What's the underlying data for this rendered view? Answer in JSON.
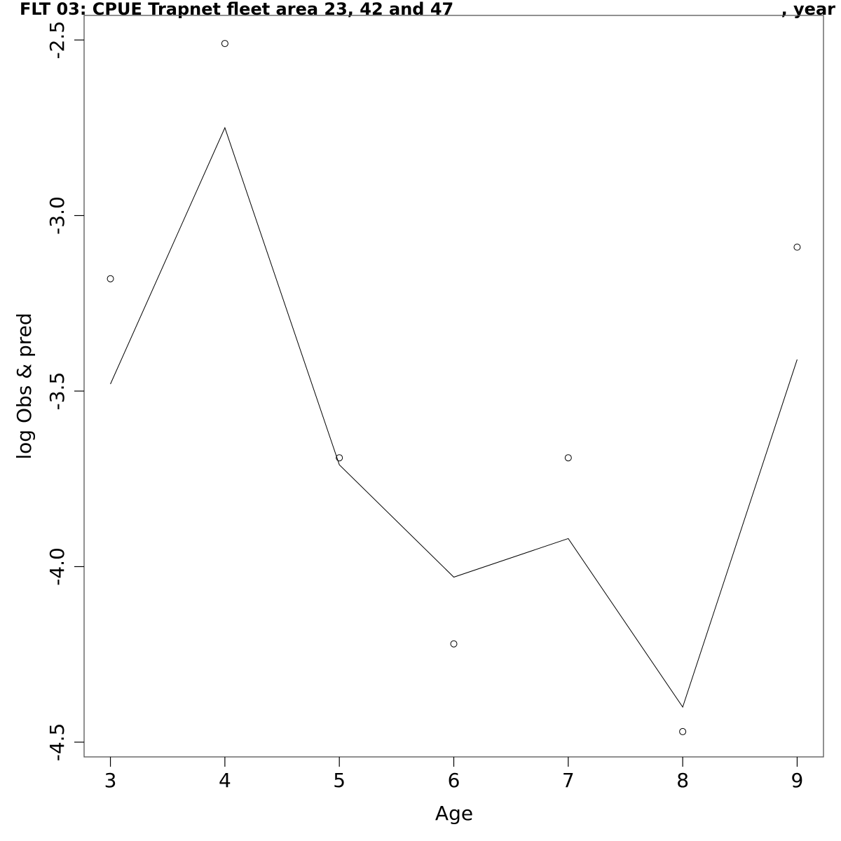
{
  "chart_data": {
    "type": "line",
    "title_left": "FLT 03: CPUE Trapnet fleet area 23, 42 and 47",
    "title_right": ", year",
    "xlabel": "Age",
    "ylabel": "log Obs & pred",
    "xlim": [
      2.77,
      9.23
    ],
    "ylim": [
      -4.542,
      -2.43
    ],
    "x_ticks": [
      3,
      4,
      5,
      6,
      7,
      8,
      9
    ],
    "y_ticks": [
      -4.5,
      -4.0,
      -3.5,
      -3.0,
      -2.5
    ],
    "y_tick_labels": [
      "-4.5",
      "-4.0",
      "-3.5",
      "-3.0",
      "-2.5"
    ],
    "grid": false,
    "series": [
      {
        "role": "observed",
        "style": "points",
        "x": [
          3,
          4,
          5,
          6,
          7,
          8,
          9
        ],
        "y": [
          -3.18,
          -2.51,
          -3.69,
          -4.22,
          -3.69,
          -4.47,
          -3.09
        ]
      },
      {
        "role": "predicted",
        "style": "line",
        "x": [
          3,
          4,
          5,
          6,
          7,
          8,
          9
        ],
        "y": [
          -3.48,
          -2.75,
          -3.71,
          -4.03,
          -3.92,
          -4.4,
          -3.41
        ]
      }
    ],
    "colors": {
      "line": "#000000",
      "points": "#000000",
      "frame": "#555555"
    }
  }
}
